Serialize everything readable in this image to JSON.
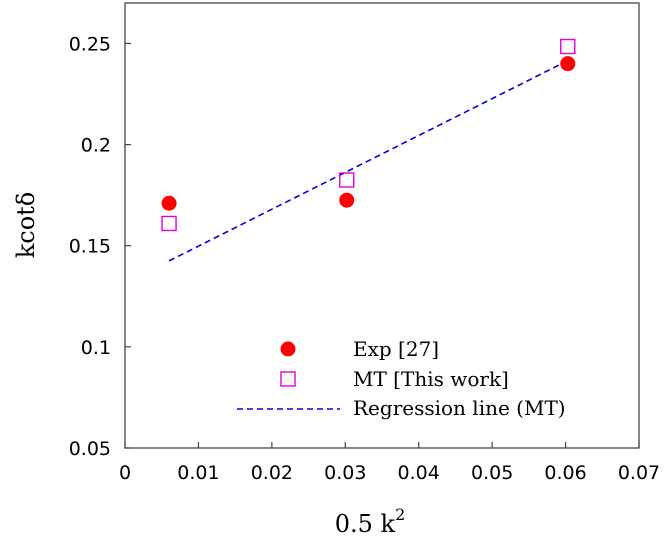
{
  "chart_data": {
    "type": "scatter",
    "xlabel": "0.5 k",
    "xlabel_superscript": "2",
    "ylabel": "kcotδ",
    "xlim": [
      0,
      0.07
    ],
    "ylim": [
      0.05,
      0.27
    ],
    "xticks": [
      "0",
      "0.01",
      "0.02",
      "0.03",
      "0.04",
      "0.05",
      "0.06",
      "0.07"
    ],
    "xtick_values": [
      0,
      0.01,
      0.02,
      0.03,
      0.04,
      0.05,
      0.06,
      0.07
    ],
    "yticks": [
      "0.05",
      "0.1",
      "0.15",
      "0.2",
      "0.25"
    ],
    "ytick_values": [
      0.05,
      0.1,
      0.15,
      0.2,
      0.25
    ],
    "grid": false,
    "legend_position": "bottom-right",
    "series": [
      {
        "name": "Exp [27]",
        "marker": "filled-circle",
        "color": "#ff0000",
        "x": [
          0.006,
          0.0302,
          0.0603
        ],
        "y": [
          0.171,
          0.1725,
          0.24
        ]
      },
      {
        "name": "MT [This work]",
        "marker": "open-square",
        "color": "#e000e0",
        "x": [
          0.006,
          0.0302,
          0.0603
        ],
        "y": [
          0.161,
          0.1825,
          0.2485
        ]
      },
      {
        "name": "Regression line (MT)",
        "marker": "dashed-line",
        "color": "#0000dd",
        "x": [
          0.006,
          0.0603
        ],
        "y": [
          0.1425,
          0.2415
        ]
      }
    ]
  }
}
